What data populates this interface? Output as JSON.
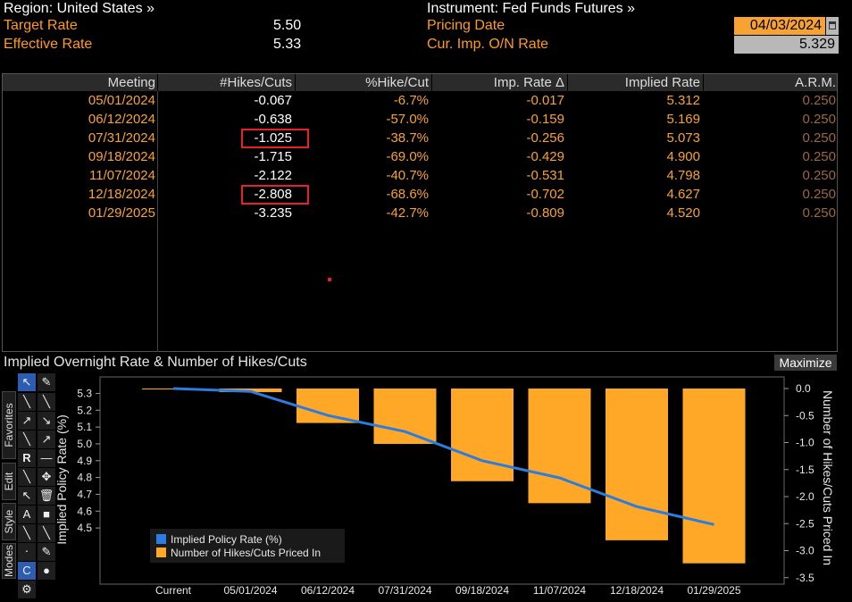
{
  "header": {
    "region_label": "Region: United States »",
    "instrument_label": "Instrument: Fed Funds Futures »",
    "target_rate_label": "Target Rate",
    "target_rate_value": "5.50",
    "effective_rate_label": "Effective Rate",
    "effective_rate_value": "5.33",
    "pricing_date_label": "Pricing Date",
    "pricing_date_value": "04/03/2024",
    "cur_imp_label": "Cur. Imp. O/N Rate",
    "cur_imp_value": "5.329"
  },
  "table": {
    "headers": [
      "Meeting",
      "#Hikes/Cuts",
      "%Hike/Cut",
      "Imp. Rate Δ",
      "Implied Rate",
      "A.R.M."
    ],
    "rows": [
      [
        "05/01/2024",
        "-0.067",
        "-6.7%",
        "-0.017",
        "5.312",
        "0.250"
      ],
      [
        "06/12/2024",
        "-0.638",
        "-57.0%",
        "-0.159",
        "5.169",
        "0.250"
      ],
      [
        "07/31/2024",
        "-1.025",
        "-38.7%",
        "-0.256",
        "5.073",
        "0.250"
      ],
      [
        "09/18/2024",
        "-1.715",
        "-69.0%",
        "-0.429",
        "4.900",
        "0.250"
      ],
      [
        "11/07/2024",
        "-2.122",
        "-40.7%",
        "-0.531",
        "4.798",
        "0.250"
      ],
      [
        "12/18/2024",
        "-2.808",
        "-68.6%",
        "-0.702",
        "4.627",
        "0.250"
      ],
      [
        "01/29/2025",
        "-3.235",
        "-42.7%",
        "-0.809",
        "4.520",
        "0.250"
      ]
    ],
    "highlighted_rows": [
      2,
      5
    ]
  },
  "chart_panel": {
    "title": "Implied Overnight Rate & Number of Hikes/Cuts",
    "maximize_label": "Maximize",
    "toolbar_tabs": [
      "Favorites",
      "Edit",
      "Style",
      "Modes"
    ]
  },
  "chart_data": {
    "type": "bar",
    "categories": [
      "Current",
      "05/01/2024",
      "06/12/2024",
      "07/31/2024",
      "09/18/2024",
      "11/07/2024",
      "12/18/2024",
      "01/29/2025"
    ],
    "series": [
      {
        "name": "Number of Hikes/Cuts Priced In",
        "type": "bar",
        "axis": "right",
        "color": "#ffa726",
        "values": [
          0,
          -0.067,
          -0.638,
          -1.025,
          -1.715,
          -2.122,
          -2.808,
          -3.235
        ]
      },
      {
        "name": "Implied Policy Rate (%)",
        "type": "line",
        "axis": "left",
        "color": "#2b7de0",
        "values": [
          5.329,
          5.312,
          5.169,
          5.073,
          4.9,
          4.798,
          4.627,
          4.52
        ]
      }
    ],
    "ylabel_left": "Implied Policy Rate (%)",
    "ylabel_right": "Number of Hikes/Cuts Priced In",
    "ylim_left": [
      4.47,
      5.35
    ],
    "yticks_left": [
      "5.3",
      "5.2",
      "5.1",
      "5.0",
      "4.9",
      "4.8",
      "4.7",
      "4.6",
      "4.5"
    ],
    "ylim_right": [
      -3.5,
      0.1
    ],
    "yticks_right": [
      "0.0",
      "-0.5",
      "-1.0",
      "-1.5",
      "-2.0",
      "-2.5",
      "-3.0",
      "-3.5"
    ],
    "legend_position": "bottom-left",
    "grid": false
  }
}
